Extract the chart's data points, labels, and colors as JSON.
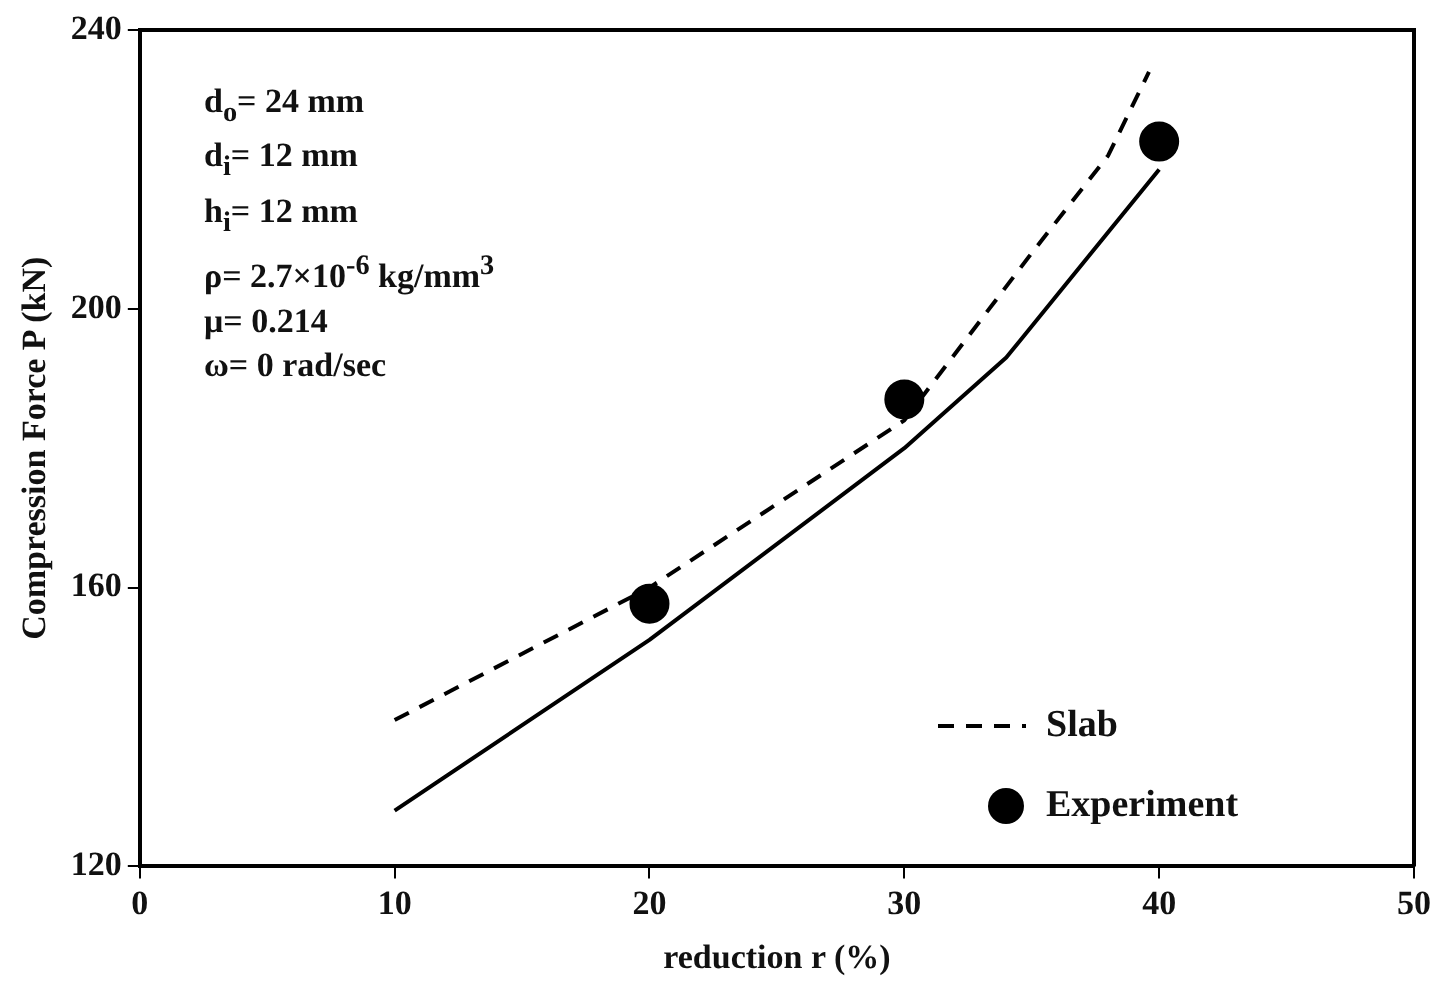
{
  "chart_data": {
    "type": "line",
    "xlabel": "reduction r (%)",
    "ylabel": "Compression Force P (kN)",
    "xlim": [
      0,
      50
    ],
    "xticks": [
      0,
      10,
      20,
      30,
      40,
      50
    ],
    "ylim": [
      120,
      240
    ],
    "yticks": [
      120,
      160,
      200,
      240
    ],
    "grid": false,
    "legend": "bottom right",
    "annotations": [
      "d$_{o}$= 24 mm",
      "d$_{i}$= 12 mm",
      "h$_{i}$= 12 mm",
      "ρ= 2.7×10$^{-6}$ kg/mm$^{3}$",
      "μ= 0.214",
      "ω= 0 rad/sec"
    ],
    "series": [
      {
        "color": "#000000",
        "line_style": "solid",
        "marker": "none",
        "x": [
          10,
          20,
          30,
          34,
          40
        ],
        "values": [
          128,
          152.5,
          180,
          193,
          220
        ]
      },
      {
        "name": "Slab",
        "color": "#000000",
        "line_style": "dashed",
        "marker": "none",
        "x": [
          10,
          20,
          30,
          35,
          38,
          39.6
        ],
        "values": [
          141,
          160,
          184,
          208,
          222,
          234
        ]
      },
      {
        "name": "Experiment",
        "type": "scatter",
        "color": "#000000",
        "marker": "circle",
        "x": [
          20,
          30,
          40
        ],
        "values": [
          157.7,
          187,
          224
        ]
      }
    ]
  }
}
